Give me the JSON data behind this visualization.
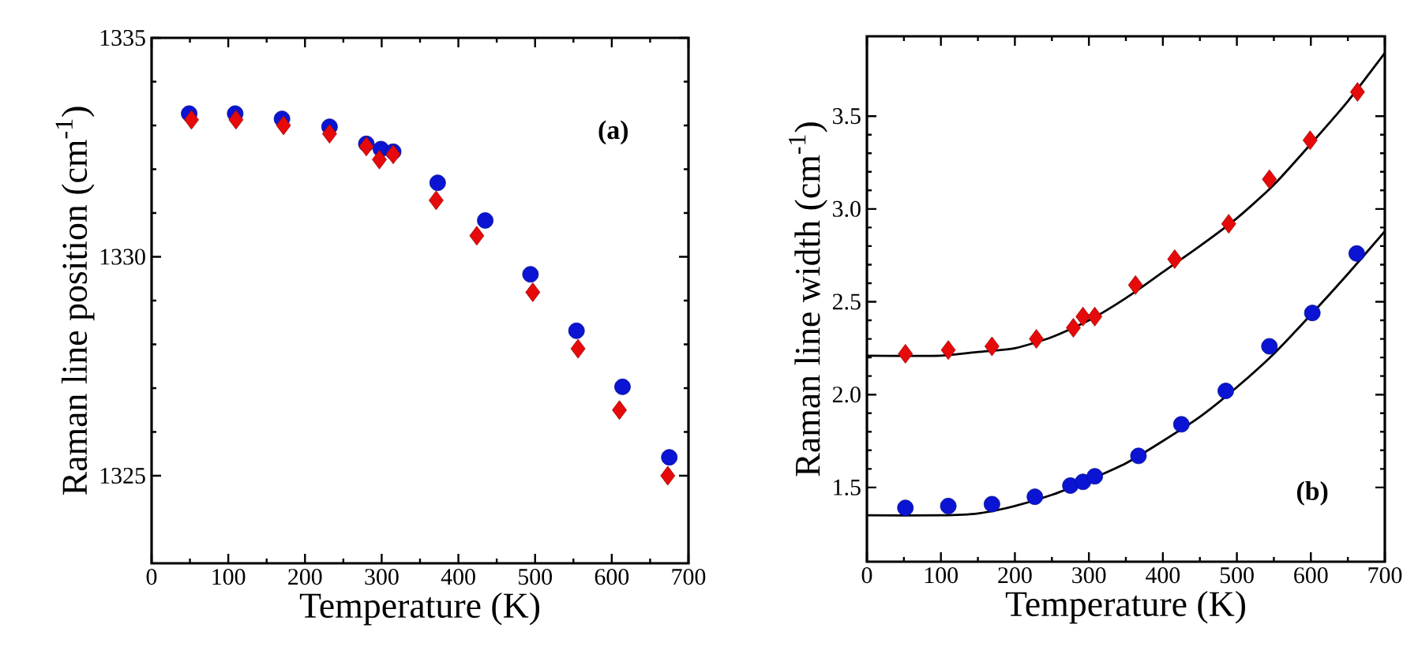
{
  "chart_data": [
    {
      "type": "scatter",
      "xlabel": "Temperature (K)",
      "ylabel": "Raman line position (cm$^{-1}$)",
      "annotations": [
        "(a)"
      ],
      "xlim": [
        0,
        700
      ],
      "xticks": [
        0,
        100,
        200,
        300,
        400,
        500,
        600,
        700
      ],
      "ylim": [
        1323,
        1335
      ],
      "yticks": [
        1325,
        1330,
        1335
      ],
      "series": [
        {
          "color": "#0a14d2",
          "marker": "circle",
          "x": [
            49,
            109,
            170,
            232,
            280,
            299,
            315,
            373,
            435,
            494,
            554,
            614,
            675
          ],
          "values": [
            1333.27,
            1333.27,
            1333.15,
            1332.97,
            1332.58,
            1332.46,
            1332.4,
            1331.69,
            1330.83,
            1329.6,
            1328.31,
            1327.03,
            1325.42
          ]
        },
        {
          "color": "#e60a0a",
          "marker": "diamond",
          "x": [
            52,
            110,
            172,
            232,
            280,
            297,
            315,
            371,
            424,
            497,
            556,
            610,
            673
          ],
          "values": [
            1333.13,
            1333.13,
            1333.0,
            1332.81,
            1332.52,
            1332.22,
            1332.34,
            1331.29,
            1330.48,
            1329.19,
            1327.9,
            1326.5,
            1325.0
          ]
        }
      ]
    },
    {
      "type": "scatter",
      "xlabel": "Temperature (K)",
      "ylabel": "Raman line width (cm$^{-1}$)",
      "annotations": [
        "(b)"
      ],
      "xlim": [
        0,
        700
      ],
      "xticks": [
        0,
        100,
        200,
        300,
        400,
        500,
        600,
        700
      ],
      "ylim": [
        1.1,
        3.93
      ],
      "yticks": [
        {
          "value": 1.5,
          "label": "1.5"
        },
        {
          "value": 2.0,
          "label": "2.0"
        },
        {
          "value": 2.5,
          "label": "2.5"
        },
        {
          "value": 3.0,
          "label": "3.0"
        },
        {
          "value": 3.5,
          "label": "3.5"
        }
      ],
      "series": [
        {
          "type": "line",
          "color": "#000000",
          "marker": "none",
          "x": [
            0,
            100,
            150,
            200,
            250,
            300,
            350,
            400,
            450,
            500,
            550,
            600,
            650,
            700
          ],
          "values": [
            2.21,
            2.21,
            2.23,
            2.25,
            2.31,
            2.4,
            2.52,
            2.66,
            2.8,
            2.95,
            3.13,
            3.35,
            3.58,
            3.84
          ]
        },
        {
          "type": "line",
          "color": "#000000",
          "marker": "none",
          "x": [
            0,
            100,
            150,
            200,
            250,
            300,
            350,
            400,
            450,
            500,
            550,
            600,
            650,
            700
          ],
          "values": [
            1.35,
            1.35,
            1.36,
            1.4,
            1.46,
            1.54,
            1.63,
            1.75,
            1.88,
            2.04,
            2.22,
            2.43,
            2.65,
            2.88
          ]
        },
        {
          "color": "#e60a0a",
          "marker": "diamond",
          "x": [
            52,
            110,
            169,
            229,
            279,
            292,
            308,
            363,
            416,
            489,
            544,
            599,
            663
          ],
          "values": [
            2.22,
            2.24,
            2.26,
            2.3,
            2.36,
            2.42,
            2.42,
            2.59,
            2.73,
            2.92,
            3.16,
            3.37,
            3.63
          ]
        },
        {
          "color": "#0a14d2",
          "marker": "circle",
          "x": [
            52,
            110,
            169,
            227,
            275,
            292,
            308,
            367,
            425,
            485,
            544,
            602,
            662
          ],
          "values": [
            1.39,
            1.4,
            1.41,
            1.45,
            1.51,
            1.53,
            1.56,
            1.67,
            1.84,
            2.02,
            2.26,
            2.44,
            2.76
          ]
        }
      ]
    }
  ]
}
